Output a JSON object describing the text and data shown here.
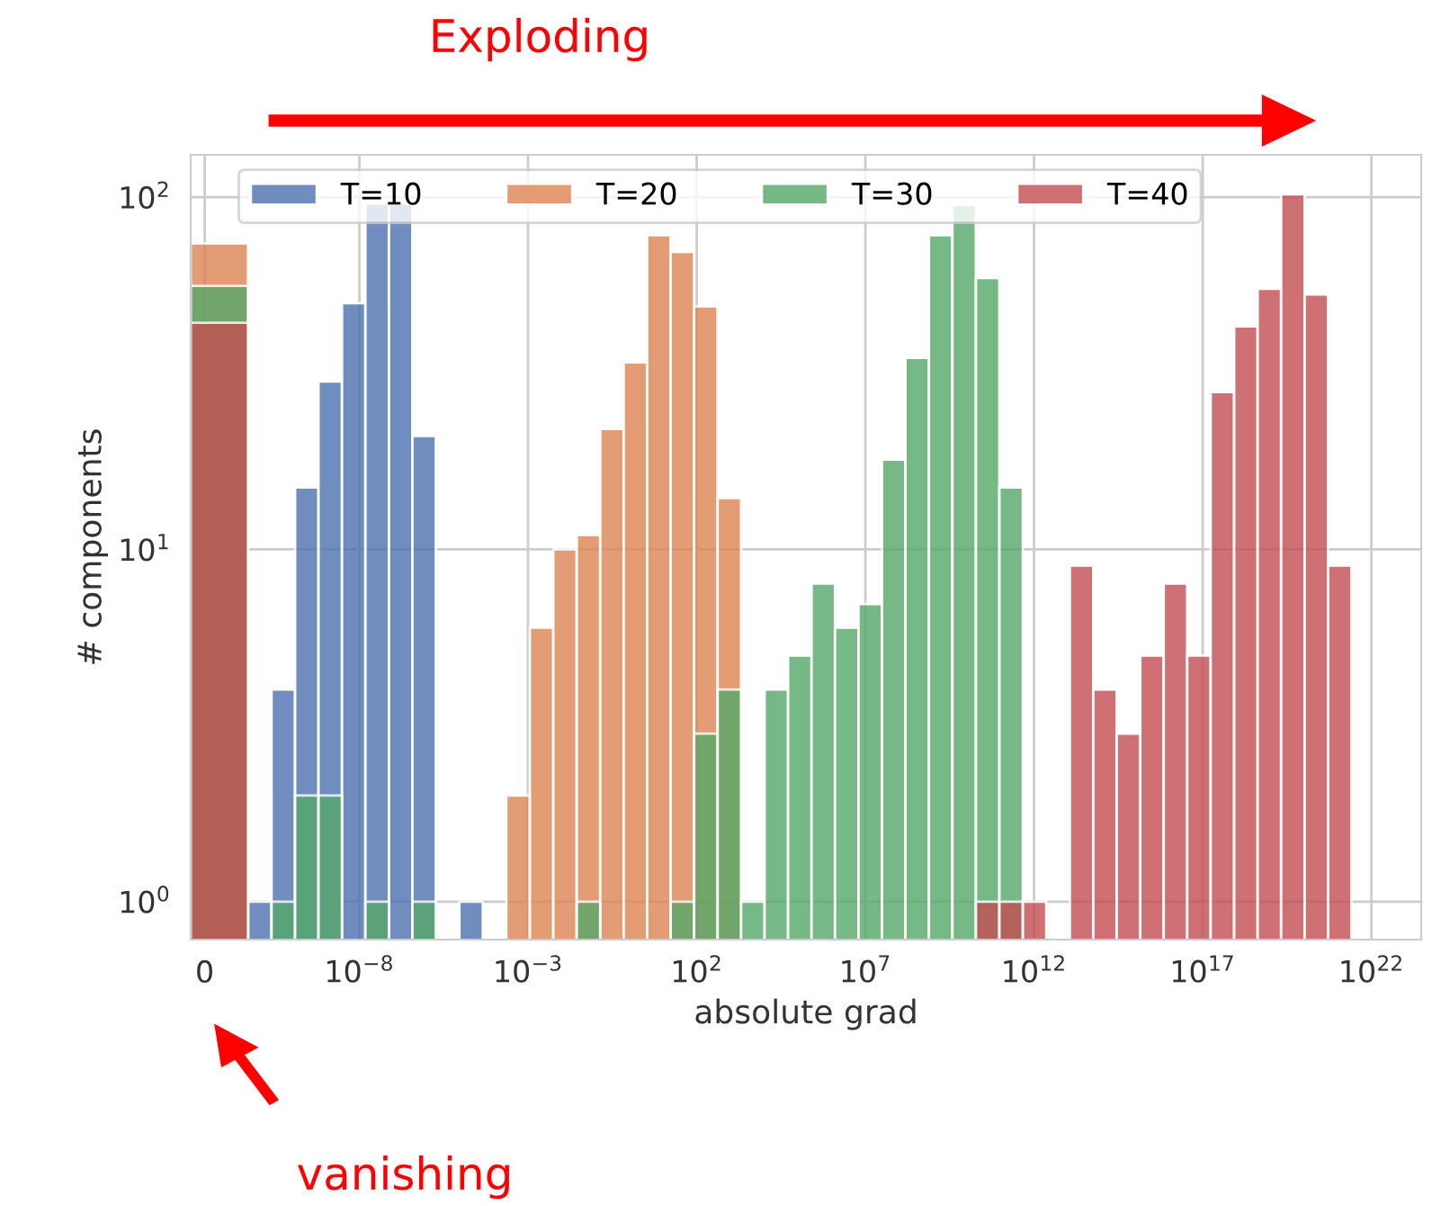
{
  "chart_data": {
    "type": "histogram",
    "title": "Exploding",
    "xlabel": "absolute grad",
    "ylabel": "# components",
    "annotations": [
      "vanishing"
    ],
    "bins": [
      1e-13,
      5.01e-12,
      2.49e-11,
      1.24e-10,
      6.14e-10,
      3.05e-09,
      1.51e-08,
      7.52e-08,
      3.73e-07,
      1.85e-06,
      9.2e-06,
      4.57e-05,
      0.000227,
      0.00113,
      0.0056,
      0.0278,
      0.138,
      0.685,
      3.4,
      16.9,
      83.9,
      417,
      2070,
      10300,
      51100,
      254000.0,
      1260000.0,
      6250000.0,
      31000000.0,
      154000000.0,
      766000000.0,
      3800000000.0,
      18900000000.0,
      93800000000.0,
      466000000000.0,
      2310000000000.0,
      11500000000000.0,
      57000000000000.0,
      283000000000000.0,
      1410000000000000.0,
      6980000000000000.0,
      3.47e+16,
      1.72e+17,
      8.55e+17,
      4.25e+18,
      2.11e+19,
      1.05e+20,
      5.2e+20,
      2.58e+21
    ],
    "series": [
      {
        "name": "T=10",
        "color": "#4c72b0",
        "values": [
          null,
          1,
          4,
          15,
          30,
          50,
          96,
          96,
          21,
          null,
          1,
          null,
          null,
          null,
          null,
          null,
          null,
          null,
          null,
          null,
          null,
          null,
          null,
          null,
          null,
          null,
          null,
          null,
          null,
          null,
          null,
          null,
          null,
          null,
          null,
          null,
          null,
          null,
          null,
          null,
          null,
          null,
          null,
          null,
          null,
          null,
          null,
          null
        ]
      },
      {
        "name": "T=20",
        "color": "#dd8452",
        "values": [
          74,
          null,
          null,
          null,
          null,
          null,
          null,
          null,
          null,
          null,
          null,
          null,
          2,
          6,
          10,
          11,
          22,
          34,
          78,
          70,
          49,
          14,
          null,
          null,
          null,
          null,
          null,
          null,
          null,
          null,
          null,
          null,
          null,
          null,
          null,
          null,
          null,
          null,
          null,
          null,
          null,
          null,
          null,
          null,
          null,
          null,
          null,
          null
        ]
      },
      {
        "name": "T=30",
        "color": "#55a868",
        "values": [
          56,
          null,
          1,
          2,
          2,
          null,
          1,
          null,
          1,
          null,
          null,
          null,
          null,
          null,
          null,
          1,
          null,
          null,
          null,
          1,
          3,
          4,
          1,
          4,
          5,
          8,
          6,
          7,
          18,
          35,
          78,
          95,
          59,
          15,
          null,
          null,
          null,
          null,
          null,
          null,
          null,
          null,
          null,
          null,
          null,
          null,
          null,
          null
        ]
      },
      {
        "name": "T=40",
        "color": "#c44e52",
        "values": [
          44,
          null,
          null,
          null,
          null,
          null,
          null,
          null,
          null,
          null,
          null,
          null,
          null,
          null,
          null,
          null,
          null,
          null,
          null,
          null,
          null,
          null,
          null,
          null,
          null,
          null,
          null,
          null,
          null,
          null,
          null,
          null,
          1,
          1,
          1,
          null,
          9,
          4,
          3,
          5,
          8,
          5,
          28,
          43,
          55,
          102,
          53,
          9
        ]
      }
    ],
    "log": "xy",
    "xlim": [
      1e-13,
      3e+23
    ],
    "xticks": [
      {
        "value": 2.6e-13,
        "label": "0"
      },
      {
        "value": 1e-08,
        "label": "10$^{−8}$"
      },
      {
        "value": 0.001,
        "label": "10$^{−3}$"
      },
      {
        "value": 100,
        "label": "10$^{2}$"
      },
      {
        "value": 10000000.0,
        "label": "10$^{7}$"
      },
      {
        "value": 1000000000000.0,
        "label": "10$^{12}$"
      },
      {
        "value": 1e+17,
        "label": "10$^{17}$"
      },
      {
        "value": 1e+22,
        "label": "10$^{22}$"
      }
    ],
    "ylim": [
      0.78,
      132
    ],
    "yticks": [
      {
        "value": 1,
        "label": "10$^{0}$"
      },
      {
        "value": 10,
        "label": "10$^{1}$"
      },
      {
        "value": 100,
        "label": "10$^{2}$"
      }
    ],
    "grid": true,
    "legend": "top"
  }
}
